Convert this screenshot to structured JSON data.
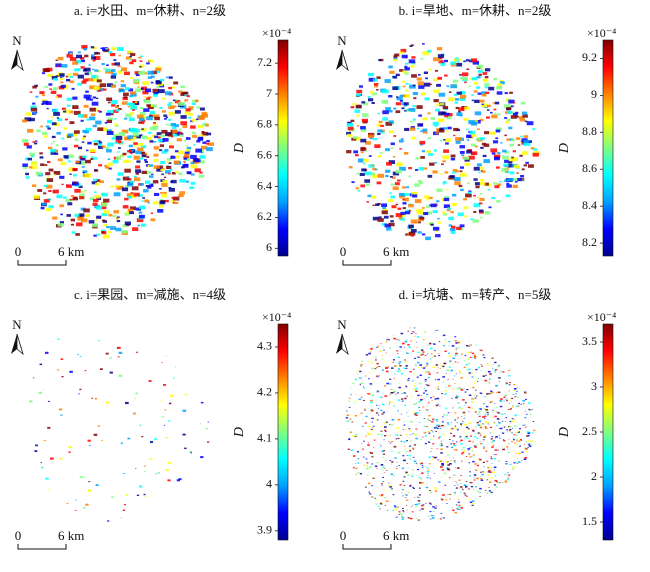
{
  "panels": [
    {
      "title": "a. i=水田、m=休耕、n=2级",
      "north": "N",
      "scale_zero": "0",
      "scale_label": "6 km",
      "colorbar_label": "D",
      "colorbar_multiplier": "×10⁻⁴",
      "colorbar_range": [
        5.95,
        7.35
      ],
      "colorbar_ticks": [
        7.2,
        7.0,
        6.8,
        6.6,
        6.4,
        6.2,
        6.0
      ]
    },
    {
      "title": "b. i=旱地、m=休耕、n=2级",
      "north": "N",
      "scale_zero": "0",
      "scale_label": "6 km",
      "colorbar_label": "D",
      "colorbar_multiplier": "×10⁻⁴",
      "colorbar_range": [
        8.13,
        9.3
      ],
      "colorbar_ticks": [
        9.2,
        9.0,
        8.8,
        8.6,
        8.4,
        8.2
      ]
    },
    {
      "title": "c. i=果园、m=减施、n=4级",
      "north": "N",
      "scale_zero": "0",
      "scale_label": "6 km",
      "colorbar_label": "D",
      "colorbar_multiplier": "×10⁻⁴",
      "colorbar_range": [
        3.88,
        4.35
      ],
      "colorbar_ticks": [
        4.3,
        4.2,
        4.1,
        4.0,
        3.9
      ]
    },
    {
      "title": "d. i=坑塘、m=转产、n=5级",
      "north": "N",
      "scale_zero": "0",
      "scale_label": "6 km",
      "colorbar_label": "D",
      "colorbar_multiplier": "×10⁻⁴",
      "colorbar_range": [
        1.3,
        3.7
      ],
      "colorbar_ticks": [
        3.5,
        3.0,
        2.5,
        2.0,
        1.5
      ]
    }
  ]
}
